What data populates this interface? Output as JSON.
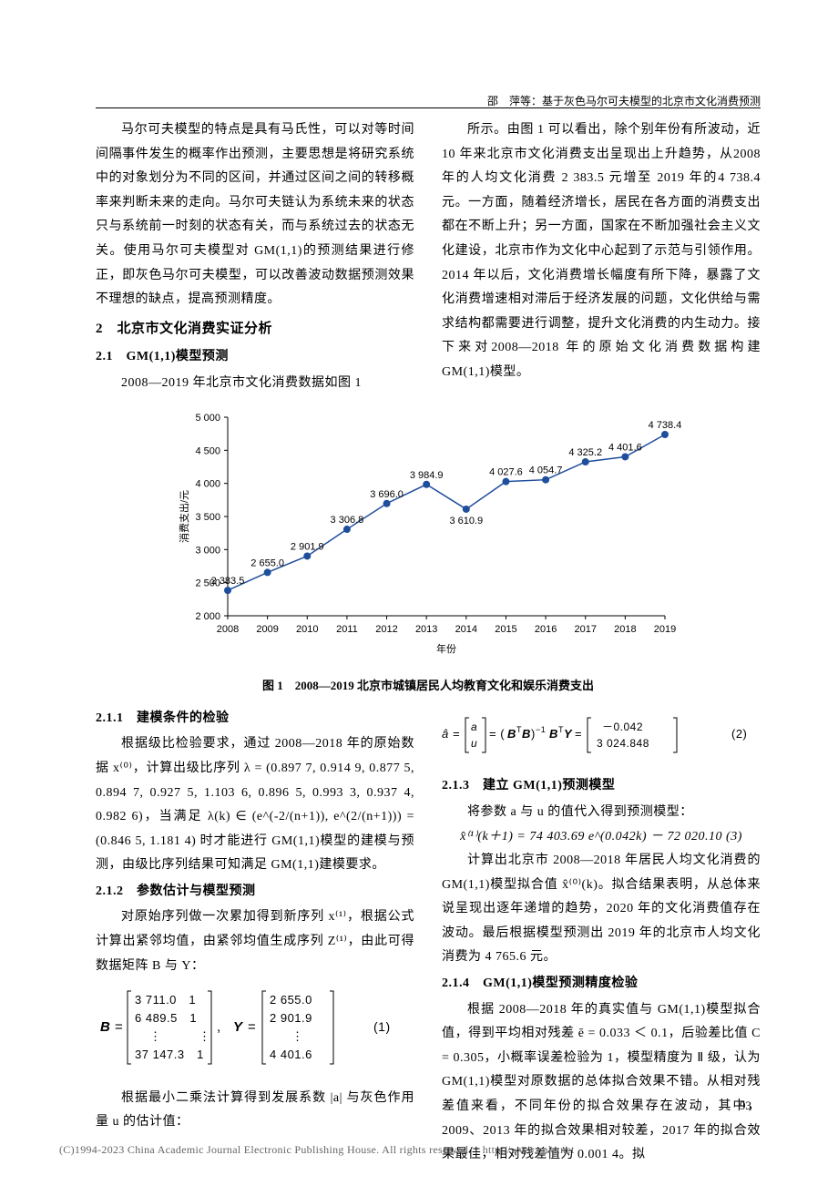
{
  "header": {
    "running_title": "邵　萍等：基于灰色马尔可夫模型的北京市文化消费预测"
  },
  "top_left_col": {
    "p1": "马尔可夫模型的特点是具有马氏性，可以对等时间间隔事件发生的概率作出预测，主要思想是将研究系统中的对象划分为不同的区间，并通过区间之间的转移概率来判断未来的走向。马尔可夫链认为系统未来的状态只与系统前一时刻的状态有关，而与系统过去的状态无关。使用马尔可夫模型对 GM(1,1)的预测结果进行修正，即灰色马尔可夫模型，可以改善波动数据预测效果不理想的缺点，提高预测精度。",
    "h2": "2　北京市文化消费实证分析",
    "h3": "2.1　GM(1,1)模型预测",
    "p2": "2008—2019 年北京市文化消费数据如图 1"
  },
  "top_right_col": {
    "p1": "所示。由图 1 可以看出，除个别年份有所波动，近10 年来北京市文化消费支出呈现出上升趋势，从2008 年的人均文化消费 2 383.5 元增至 2019 年的4 738.4 元。一方面，随着经济增长，居民在各方面的消费支出都在不断上升；另一方面，国家在不断加强社会主义文化建设，北京市作为文化中心起到了示范与引领作用。2014 年以后，文化消费增长幅度有所下降，暴露了文化消费增速相对滞后于经济发展的问题，文化供给与需求结构都需要进行调整，提升文化消费的内生动力。接下来对2008—2018 年的原始文化消费数据构建 GM(1,1)模型。"
  },
  "chart": {
    "type": "line",
    "caption": "图 1　2008—2019 北京市城镇居民人均教育文化和娱乐消费支出",
    "xlabel": "年份",
    "ylabel": "消费支出/元",
    "years": [
      "2008",
      "2009",
      "2010",
      "2011",
      "2012",
      "2013",
      "2014",
      "2015",
      "2016",
      "2017",
      "2018",
      "2019"
    ],
    "values": [
      2383.5,
      2655.0,
      2901.9,
      3306.8,
      3696.0,
      3984.9,
      3610.9,
      4027.6,
      4054.7,
      4325.2,
      4401.6,
      4738.4
    ],
    "ylim": [
      2000,
      5000
    ],
    "ytick_step": 500,
    "yticks": [
      2000,
      2500,
      3000,
      3500,
      4000,
      4500,
      5000
    ],
    "line_color": "#1f4e9c",
    "marker_color": "#1f4e9c",
    "marker_size": 4,
    "axis_color": "#000000",
    "background_color": "#ffffff",
    "label_fontsize": 11,
    "tick_fontsize": 11
  },
  "bottom_left_col": {
    "h4_1": "2.1.1　建模条件的检验",
    "p1": "根据级比检验要求，通过 2008—2018 年的原始数据 x⁽⁰⁾，计算出级比序列 λ = (0.897 7, 0.914 9, 0.877 5, 0.894 7, 0.927 5, 1.103 6, 0.896 5, 0.993 3, 0.937 4, 0.982 6)，当满足 λ(k) ∈ (e^(-2/(n+1)), e^(2/(n+1))) = (0.846 5, 1.181 4) 时才能进行 GM(1,1)模型的建模与预测，由级比序列结果可知满足 GM(1,1)建模要求。",
    "h4_2": "2.1.2　参数估计与模型预测",
    "p2": "对原始序列做一次累加得到新序列 x⁽¹⁾，根据公式计算出紧邻均值，由紧邻均值生成序列 Z⁽¹⁾，由此可得数据矩阵 B 与 Y：",
    "matrix_B_rows": [
      "3 711.0　1",
      "6 489.5　1",
      "⋮　　　⋮",
      "37 147.3　1"
    ],
    "matrix_Y_rows": [
      "2 655.0",
      "2 901.9",
      "⋮",
      "4 401.6"
    ],
    "eq_num_1": "(1)",
    "p3": "根据最小二乘法计算得到发展系数 |a| 与灰色作用量 u 的估计值："
  },
  "bottom_right_col": {
    "eq2_left": "â = [a; u] = (BᵀB)⁻¹ BᵀY = ",
    "eq2_vals": [
      "－0.042",
      "3 024.848"
    ],
    "eq_num_2": "(2)",
    "h4_1": "2.1.3　建立 GM(1,1)预测模型",
    "p1": "将参数 a 与 u 的值代入得到预测模型：",
    "eq3": "x̂⁽¹⁾(k＋1) = 74 403.69 e^(0.042k) － 72 020.10 (3)",
    "p2": "计算出北京市 2008—2018 年居民人均文化消费的GM(1,1)模型拟合值 x̂⁽⁰⁾(k)。拟合结果表明，从总体来说呈现出逐年递增的趋势，2020 年的文化消费值存在波动。最后根据模型预测出 2019 年的北京市人均文化消费为 4 765.6 元。",
    "h4_2": "2.1.4　GM(1,1)模型预测精度检验",
    "p3": "根据 2008—2018 年的真实值与 GM(1,1)模型拟合值，得到平均相对残差 ē = 0.033 ＜ 0.1，后验差比值 C = 0.305，小概率误差检验为 1，模型精度为 Ⅱ 级，认为 GM(1,1)模型对原数据的总体拟合效果不错。从相对残差值来看，不同年份的拟合效果存在波动，其中，2009、2013 年的拟合效果相对较差，2017 年的拟合效果最佳，相对残差值为 0.001 4。拟"
  },
  "page_number": "93",
  "footer": "(C)1994-2023 China Academic Journal Electronic Publishing House. All rights reserved.　http://www.cnki.net"
}
